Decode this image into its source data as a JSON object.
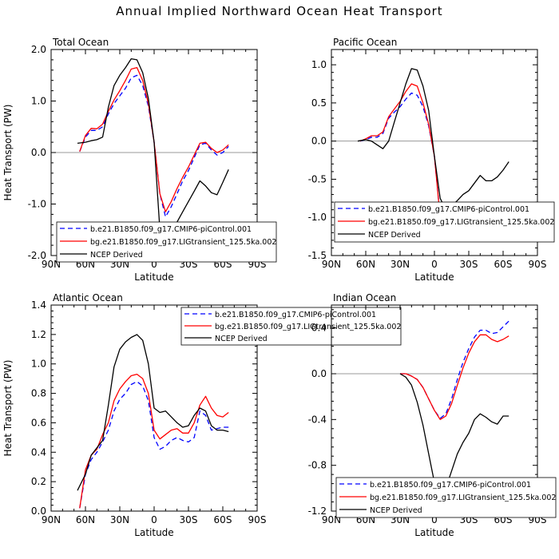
{
  "title": "Annual Implied Northward Ocean Heat Transport",
  "legend_entries": [
    {
      "label": "b.e21.B1850.f09_g17.CMIP6-piControl.001",
      "color": "#0000ff",
      "dash": "6,4"
    },
    {
      "label": "bg.e21.B1850.f09_g17.LIGtransient_125.5ka.002",
      "color": "#ff0000",
      "dash": ""
    },
    {
      "label": "NCEP Derived",
      "color": "#000000",
      "dash": ""
    }
  ],
  "chart_data": [
    {
      "type": "line",
      "title": "Total Ocean",
      "xlabel": "Latitude",
      "ylabel": "Heat Transport (PW)",
      "xlim": [
        90,
        -90
      ],
      "ylim": [
        -2.0,
        2.0
      ],
      "xticks": [
        90,
        60,
        30,
        0,
        -30,
        -60,
        -90
      ],
      "xtick_labels": [
        "90N",
        "60N",
        "30N",
        "0",
        "30S",
        "60S",
        "90S"
      ],
      "yticks": [
        -2.0,
        -1.0,
        0.0,
        1.0,
        2.0
      ],
      "ytick_labels": [
        "-2.0",
        "-1.0",
        "0.0",
        "1.0",
        "2.0"
      ],
      "legend": "bottom",
      "series": [
        {
          "name": "b.e21.B1850.f09_g17.CMIP6-piControl.001",
          "x": [
            65,
            60,
            55,
            50,
            45,
            40,
            35,
            30,
            25,
            20,
            15,
            10,
            5,
            0,
            -5,
            -10,
            -15,
            -20,
            -25,
            -30,
            -35,
            -40,
            -45,
            -50,
            -55,
            -60,
            -65
          ],
          "y": [
            0.02,
            0.3,
            0.43,
            0.43,
            0.5,
            0.75,
            0.95,
            1.1,
            1.25,
            1.45,
            1.5,
            1.3,
            0.9,
            0.2,
            -0.8,
            -1.25,
            -1.05,
            -0.8,
            -0.55,
            -0.35,
            -0.1,
            0.15,
            0.18,
            0.05,
            -0.05,
            0.0,
            0.12
          ]
        },
        {
          "name": "bg.e21.B1850.f09_g17.LIGtransient_125.5ka.002",
          "x": [
            65,
            60,
            55,
            50,
            45,
            40,
            35,
            30,
            25,
            20,
            15,
            10,
            5,
            0,
            -5,
            -10,
            -15,
            -20,
            -25,
            -30,
            -35,
            -40,
            -45,
            -50,
            -55,
            -60,
            -65
          ],
          "y": [
            0.02,
            0.33,
            0.47,
            0.46,
            0.55,
            0.8,
            1.02,
            1.2,
            1.4,
            1.62,
            1.65,
            1.4,
            0.95,
            0.2,
            -0.8,
            -1.15,
            -0.95,
            -0.7,
            -0.48,
            -0.28,
            -0.05,
            0.18,
            0.2,
            0.08,
            0.0,
            0.05,
            0.15
          ]
        },
        {
          "name": "NCEP Derived",
          "x": [
            67,
            60,
            55,
            50,
            45,
            40,
            35,
            30,
            25,
            20,
            15,
            10,
            5,
            0,
            -5,
            -10,
            -15,
            -20,
            -25,
            -30,
            -35,
            -40,
            -45,
            -50,
            -55,
            -60,
            -65
          ],
          "y": [
            0.18,
            0.2,
            0.23,
            0.25,
            0.3,
            0.88,
            1.3,
            1.5,
            1.65,
            1.82,
            1.8,
            1.55,
            1.05,
            0.2,
            -1.5,
            -1.75,
            -1.55,
            -1.35,
            -1.15,
            -0.95,
            -0.75,
            -0.55,
            -0.65,
            -0.78,
            -0.82,
            -0.58,
            -0.33
          ]
        }
      ]
    },
    {
      "type": "line",
      "title": "Pacific Ocean",
      "xlabel": "Latitude",
      "ylabel": "",
      "xlim": [
        90,
        -90
      ],
      "ylim": [
        -1.5,
        1.2
      ],
      "xticks": [
        90,
        60,
        30,
        0,
        -30,
        -60,
        -90
      ],
      "xtick_labels": [
        "90N",
        "60N",
        "30N",
        "0",
        "30S",
        "60S",
        "90S"
      ],
      "yticks": [
        -1.5,
        -1.0,
        -0.5,
        0.0,
        0.5,
        1.0
      ],
      "ytick_labels": [
        "-1.5",
        "-1.0",
        "-0.5",
        "0.0",
        "0.5",
        "1.0"
      ],
      "legend": "bottom",
      "series": [
        {
          "name": "b.e21.B1850.f09_g17.CMIP6-piControl.001",
          "x": [
            65,
            60,
            55,
            50,
            45,
            40,
            35,
            30,
            25,
            20,
            15,
            10,
            5,
            0,
            -5,
            -10,
            -15,
            -20,
            -25,
            -30,
            -35,
            -40,
            -45,
            -50,
            -55,
            -60,
            -65
          ],
          "y": [
            0.0,
            0.02,
            0.05,
            0.05,
            0.1,
            0.3,
            0.38,
            0.45,
            0.55,
            0.63,
            0.6,
            0.45,
            0.2,
            -0.2,
            -1.0,
            -1.25,
            -1.2,
            -1.1,
            -1.05,
            -1.0,
            -0.93,
            -0.88,
            -0.88,
            -0.92,
            -0.97,
            -0.97,
            -0.88
          ]
        },
        {
          "name": "bg.e21.B1850.f09_g17.LIGtransient_125.5ka.002",
          "x": [
            65,
            60,
            55,
            50,
            45,
            40,
            35,
            30,
            25,
            20,
            15,
            10,
            5,
            0,
            -5,
            -10,
            -15,
            -20,
            -25,
            -30,
            -35,
            -40,
            -45,
            -50,
            -55,
            -60,
            -65
          ],
          "y": [
            0.0,
            0.03,
            0.07,
            0.07,
            0.12,
            0.32,
            0.42,
            0.52,
            0.65,
            0.75,
            0.72,
            0.5,
            0.22,
            -0.2,
            -1.0,
            -1.3,
            -1.2,
            -1.1,
            -1.02,
            -0.98,
            -0.92,
            -0.87,
            -0.88,
            -0.93,
            -0.97,
            -0.95,
            -0.85
          ]
        },
        {
          "name": "NCEP Derived",
          "x": [
            67,
            60,
            55,
            50,
            45,
            40,
            35,
            30,
            25,
            20,
            15,
            10,
            5,
            0,
            -5,
            -10,
            -15,
            -20,
            -25,
            -30,
            -35,
            -40,
            -45,
            -50,
            -55,
            -60,
            -65
          ],
          "y": [
            0.0,
            0.02,
            0.0,
            -0.05,
            -0.1,
            0.0,
            0.25,
            0.5,
            0.75,
            0.95,
            0.93,
            0.72,
            0.4,
            -0.2,
            -0.75,
            -0.9,
            -0.85,
            -0.78,
            -0.7,
            -0.65,
            -0.55,
            -0.45,
            -0.52,
            -0.52,
            -0.47,
            -0.38,
            -0.27
          ]
        }
      ]
    },
    {
      "type": "line",
      "title": "Atlantic Ocean",
      "xlabel": "Latitude",
      "ylabel": "Heat Transport (PW)",
      "xlim": [
        90,
        -90
      ],
      "ylim": [
        0.0,
        1.4
      ],
      "xticks": [
        90,
        60,
        30,
        0,
        -30,
        -60,
        -90
      ],
      "xtick_labels": [
        "90N",
        "60N",
        "30N",
        "0",
        "30S",
        "60S",
        "90S"
      ],
      "yticks": [
        0.0,
        0.2,
        0.4,
        0.6,
        0.8,
        1.0,
        1.2,
        1.4
      ],
      "ytick_labels": [
        "0.0",
        "0.2",
        "0.4",
        "0.6",
        "0.8",
        "1.0",
        "1.2",
        "1.4"
      ],
      "legend": "top",
      "series": [
        {
          "name": "b.e21.B1850.f09_g17.CMIP6-piControl.001",
          "x": [
            65,
            60,
            55,
            50,
            45,
            40,
            35,
            30,
            25,
            20,
            15,
            10,
            5,
            0,
            -5,
            -10,
            -15,
            -20,
            -25,
            -30,
            -35,
            -40,
            -45,
            -50,
            -55,
            -60,
            -65
          ],
          "y": [
            0.02,
            0.25,
            0.35,
            0.4,
            0.47,
            0.55,
            0.68,
            0.76,
            0.8,
            0.86,
            0.88,
            0.85,
            0.75,
            0.5,
            0.42,
            0.44,
            0.48,
            0.5,
            0.48,
            0.47,
            0.5,
            0.68,
            0.65,
            0.55,
            0.56,
            0.57,
            0.57
          ]
        },
        {
          "name": "bg.e21.B1850.f09_g17.LIGtransient_125.5ka.002",
          "x": [
            65,
            60,
            55,
            50,
            45,
            40,
            35,
            30,
            25,
            20,
            15,
            10,
            5,
            0,
            -5,
            -10,
            -15,
            -20,
            -25,
            -30,
            -35,
            -40,
            -45,
            -50,
            -55,
            -60,
            -65
          ],
          "y": [
            0.02,
            0.28,
            0.38,
            0.42,
            0.52,
            0.6,
            0.75,
            0.83,
            0.88,
            0.92,
            0.93,
            0.9,
            0.8,
            0.55,
            0.49,
            0.52,
            0.55,
            0.56,
            0.53,
            0.53,
            0.6,
            0.72,
            0.78,
            0.7,
            0.65,
            0.64,
            0.67
          ]
        },
        {
          "name": "NCEP Derived",
          "x": [
            67,
            60,
            55,
            50,
            45,
            40,
            35,
            30,
            25,
            20,
            15,
            10,
            5,
            0,
            -5,
            -10,
            -15,
            -20,
            -25,
            -30,
            -35,
            -40,
            -45,
            -50,
            -55,
            -60,
            -65
          ],
          "y": [
            0.14,
            0.25,
            0.38,
            0.43,
            0.48,
            0.72,
            0.98,
            1.1,
            1.15,
            1.18,
            1.2,
            1.16,
            1.0,
            0.7,
            0.67,
            0.68,
            0.64,
            0.6,
            0.57,
            0.58,
            0.65,
            0.7,
            0.68,
            0.58,
            0.55,
            0.55,
            0.54
          ]
        }
      ]
    },
    {
      "type": "line",
      "title": "Indian Ocean",
      "xlabel": "Latitude",
      "ylabel": "",
      "xlim": [
        90,
        -90
      ],
      "ylim": [
        -1.2,
        0.6
      ],
      "xticks": [
        90,
        60,
        30,
        0,
        -30,
        -60,
        -90
      ],
      "xtick_labels": [
        "90N",
        "60N",
        "30N",
        "0",
        "30S",
        "60S",
        "90S"
      ],
      "yticks": [
        -1.2,
        -0.8,
        -0.4,
        0.0,
        0.4
      ],
      "ytick_labels": [
        "-1.2",
        "-0.8",
        "-0.4",
        "0.0",
        "0.4"
      ],
      "legend": "bottom",
      "series": [
        {
          "name": "b.e21.B1850.f09_g17.CMIP6-piControl.001",
          "x": [
            30,
            25,
            20,
            15,
            10,
            5,
            0,
            -5,
            -10,
            -15,
            -20,
            -25,
            -30,
            -35,
            -40,
            -45,
            -50,
            -55,
            -60,
            -65
          ],
          "y": [
            0.0,
            0.0,
            -0.02,
            -0.05,
            -0.12,
            -0.22,
            -0.32,
            -0.39,
            -0.35,
            -0.22,
            -0.05,
            0.1,
            0.22,
            0.32,
            0.38,
            0.38,
            0.35,
            0.36,
            0.41,
            0.46
          ]
        },
        {
          "name": "bg.e21.B1850.f09_g17.LIGtransient_125.5ka.002",
          "x": [
            30,
            25,
            20,
            15,
            10,
            5,
            0,
            -5,
            -10,
            -15,
            -20,
            -25,
            -30,
            -35,
            -40,
            -45,
            -50,
            -55,
            -60,
            -65
          ],
          "y": [
            0.0,
            0.0,
            -0.02,
            -0.05,
            -0.12,
            -0.22,
            -0.32,
            -0.4,
            -0.37,
            -0.26,
            -0.1,
            0.05,
            0.18,
            0.28,
            0.34,
            0.34,
            0.3,
            0.28,
            0.3,
            0.33
          ]
        },
        {
          "name": "NCEP Derived",
          "x": [
            30,
            25,
            20,
            15,
            10,
            5,
            0,
            -5,
            -10,
            -15,
            -20,
            -25,
            -30,
            -35,
            -40,
            -45,
            -50,
            -55,
            -60,
            -65
          ],
          "y": [
            0.0,
            -0.03,
            -0.1,
            -0.25,
            -0.45,
            -0.7,
            -0.95,
            -1.08,
            -1.0,
            -0.85,
            -0.7,
            -0.6,
            -0.52,
            -0.4,
            -0.35,
            -0.38,
            -0.42,
            -0.44,
            -0.37,
            -0.37
          ]
        }
      ]
    }
  ]
}
